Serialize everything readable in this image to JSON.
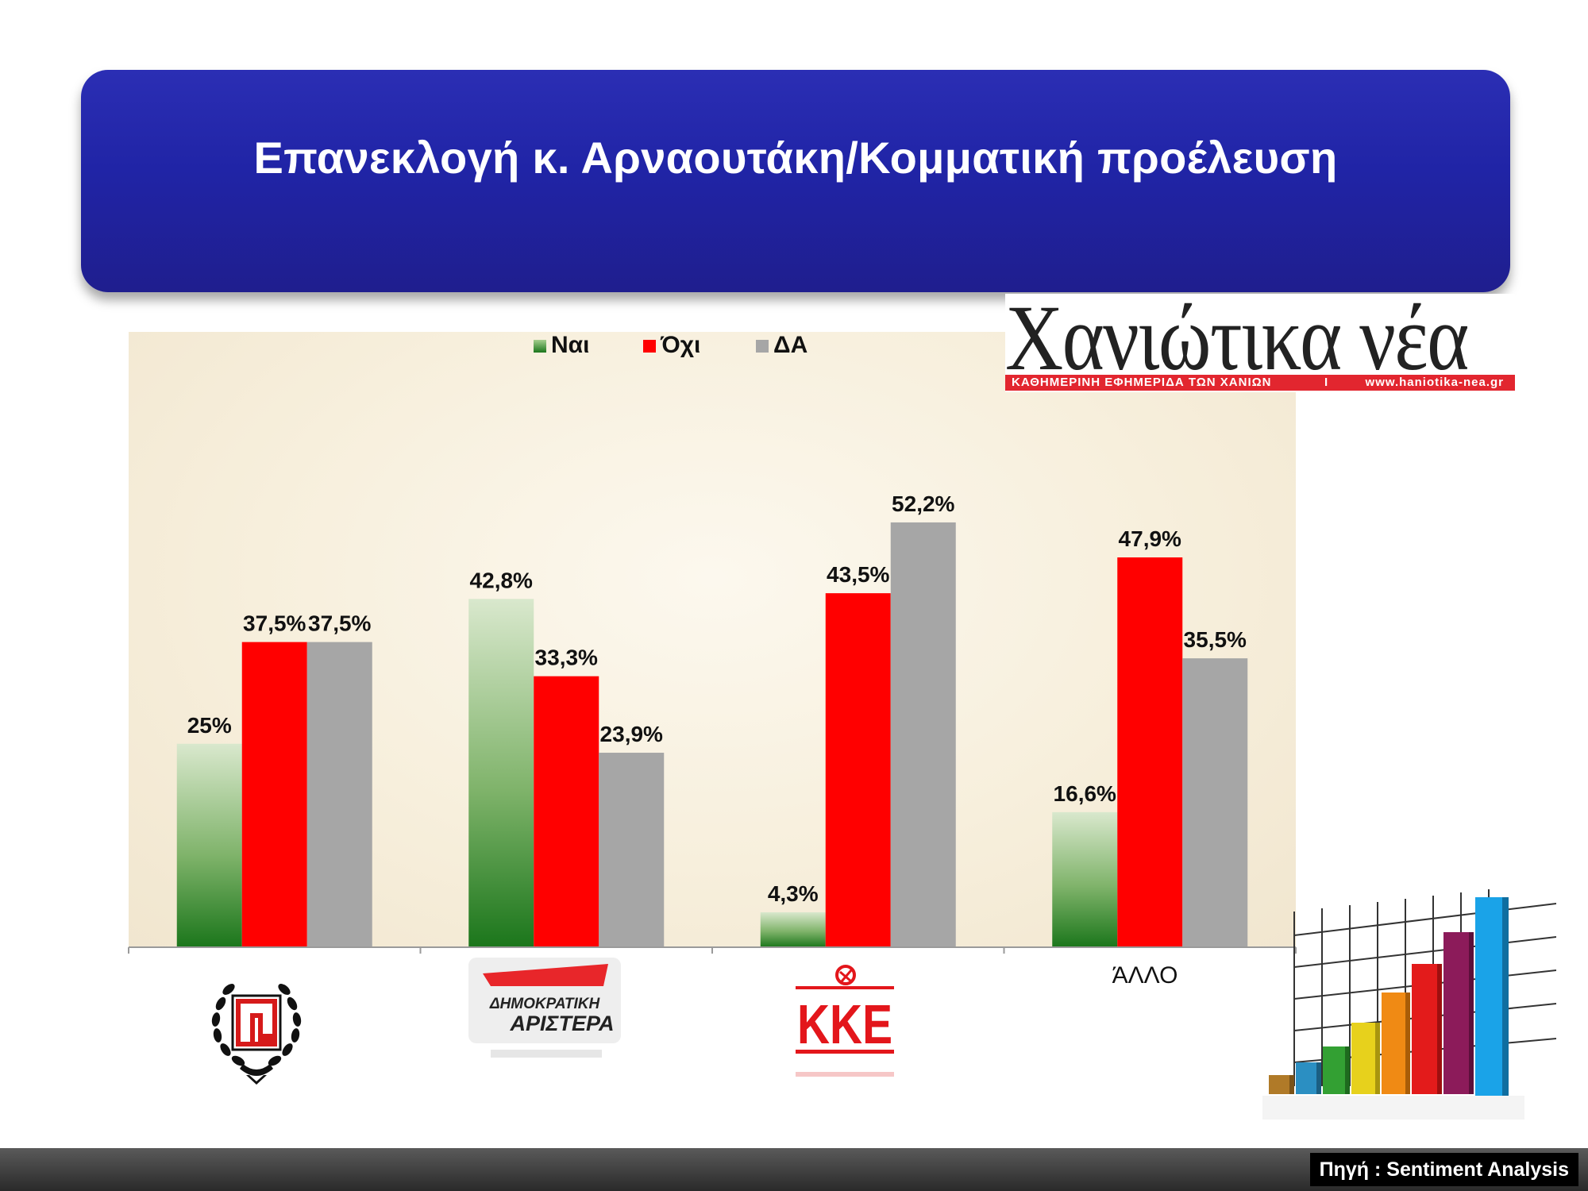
{
  "title": "Επανεκλογή κ. Αρναουτάκη/Κομματική προέλευση",
  "newspaper": {
    "name": "Χανιώτικα νέα",
    "tagline": "ΚΑΘΗΜΕΡΙΝΗ ΕΦΗΜΕΡΙΔΑ ΤΩΝ ΧΑΝΙΩΝ",
    "separator": "I",
    "url": "www.haniotika-nea.gr"
  },
  "source": "Πηγή : Sentiment Analysis",
  "logos": {
    "dimar": {
      "line1": "ΔΗΜΟΚΡΑΤΙΚΗ",
      "line2": "ΑΡΙΣΤΕΡΑ"
    },
    "kke": "ΚΚΕ"
  },
  "colors": {
    "title_bg": "#2326a8",
    "nai_top": "#d8e8cc",
    "nai_bottom": "#1d7a1d",
    "oxi": "#ff0000",
    "da": "#a6a6a6",
    "footer": "#3a3a3a"
  },
  "chart_data": {
    "type": "bar",
    "categories": [
      "",
      "",
      "",
      "ΆΛΛΟ"
    ],
    "category_note": [
      "golden-dawn-icon",
      "dimar-icon",
      "kke-icon",
      "text"
    ],
    "legend_position": "top",
    "ylim": [
      0,
      60
    ],
    "series": [
      {
        "name": "Ναι",
        "values": [
          25,
          42.8,
          4.3,
          16.6
        ],
        "labels": [
          "25%",
          "42,8%",
          "4,3%",
          "16,6%"
        ]
      },
      {
        "name": "Όχι",
        "values": [
          37.5,
          33.3,
          43.5,
          47.9
        ],
        "labels": [
          "37,5%",
          "33,3%",
          "43,5%",
          "47,9%"
        ]
      },
      {
        "name": "ΔΑ",
        "values": [
          37.5,
          23.9,
          52.2,
          35.5
        ],
        "labels": [
          "37,5%",
          "23,9%",
          "52,2%",
          "35,5%"
        ]
      }
    ]
  }
}
